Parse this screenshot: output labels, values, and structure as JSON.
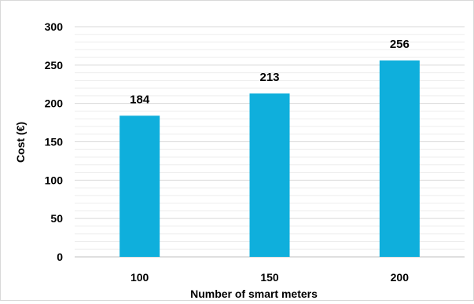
{
  "chart_data": {
    "type": "bar",
    "title": "",
    "xlabel": "Number of smart meters",
    "ylabel": "Cost (€)",
    "categories": [
      "100",
      "150",
      "200"
    ],
    "values": [
      184,
      213,
      256
    ],
    "data_labels": [
      "184",
      "213",
      "256"
    ],
    "ylim": [
      0,
      300
    ],
    "y_ticks": [
      "0",
      "50",
      "100",
      "150",
      "200",
      "250",
      "300"
    ],
    "grid": true,
    "legend": "none",
    "colors": {
      "bar": "#0FAFDC",
      "grid": "#D9D9D9",
      "axis": "#BFBFBF"
    }
  }
}
